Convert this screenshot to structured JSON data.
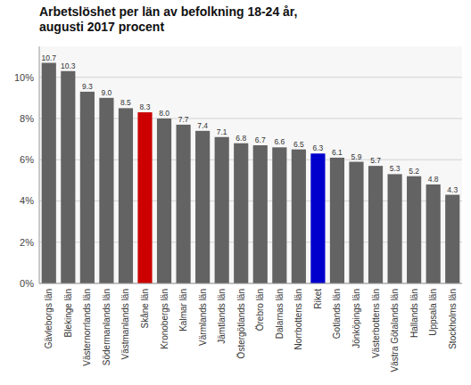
{
  "chart_data": {
    "type": "bar",
    "title": "Arbetslöshet per län av befolkning 18-24 år,\naugusti 2017 procent",
    "categories": [
      "Gävleborgs län",
      "Blekinge län",
      "Västernorrlands län",
      "Södermanlands län",
      "Västmanlands län",
      "Skåne län",
      "Kronobergs län",
      "Kalmar län",
      "Värmlands län",
      "Jämtlands län",
      "Östergötlands län",
      "Örebro län",
      "Dalarnas län",
      "Norrbottens län",
      "Riket",
      "Gotlands län",
      "Jönköpings län",
      "Västerbottens län",
      "Västra Götalands län",
      "Hallands län",
      "Uppsala län",
      "Stockholms län"
    ],
    "values": [
      10.7,
      10.3,
      9.3,
      9.0,
      8.5,
      8.3,
      8.0,
      7.7,
      7.4,
      7.1,
      6.8,
      6.7,
      6.6,
      6.5,
      6.3,
      6.1,
      5.9,
      5.7,
      5.3,
      5.2,
      4.8,
      4.3
    ],
    "value_labels": [
      "10.7",
      "10.3",
      "9.3",
      "9.0",
      "8.5",
      "8.3",
      "8.0",
      "7.7",
      "7.4",
      "7.1",
      "6.8",
      "6.7",
      "6.6",
      "6.5",
      "6.3",
      "6.1",
      "5.9",
      "5.7",
      "5.3",
      "5.2",
      "4.8",
      "4.3"
    ],
    "colors": [
      "#636363",
      "#636363",
      "#636363",
      "#636363",
      "#636363",
      "#cc0000",
      "#636363",
      "#636363",
      "#636363",
      "#636363",
      "#636363",
      "#636363",
      "#636363",
      "#636363",
      "#0000cc",
      "#636363",
      "#636363",
      "#636363",
      "#636363",
      "#636363",
      "#636363",
      "#636363"
    ],
    "ylim": [
      0,
      11.5
    ],
    "yticks": [
      {
        "value": 0,
        "label": "0%"
      },
      {
        "value": 2,
        "label": "2%"
      },
      {
        "value": 4,
        "label": "4%"
      },
      {
        "value": 6,
        "label": "6%"
      },
      {
        "value": 8,
        "label": "8%"
      },
      {
        "value": 10,
        "label": "10%"
      }
    ],
    "grid": true,
    "data_labels": true
  }
}
